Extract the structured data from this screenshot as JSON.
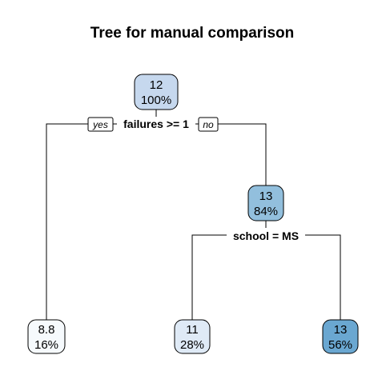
{
  "title": "Tree for manual comparison",
  "nodes": {
    "root": {
      "value": "12",
      "percent": "100%",
      "fill": "#c6d8ee"
    },
    "right": {
      "value": "13",
      "percent": "84%",
      "fill": "#92bfdd"
    },
    "leaf_left": {
      "value": "8.8",
      "percent": "16%",
      "fill": "#f6fafd"
    },
    "leaf_middle": {
      "value": "11",
      "percent": "28%",
      "fill": "#dfeaf6"
    },
    "leaf_right": {
      "value": "13",
      "percent": "56%",
      "fill": "#6aa7d1"
    }
  },
  "splits": {
    "root": {
      "label": "failures >= 1",
      "yes": "yes",
      "no": "no"
    },
    "right": {
      "label": "school = MS"
    }
  }
}
